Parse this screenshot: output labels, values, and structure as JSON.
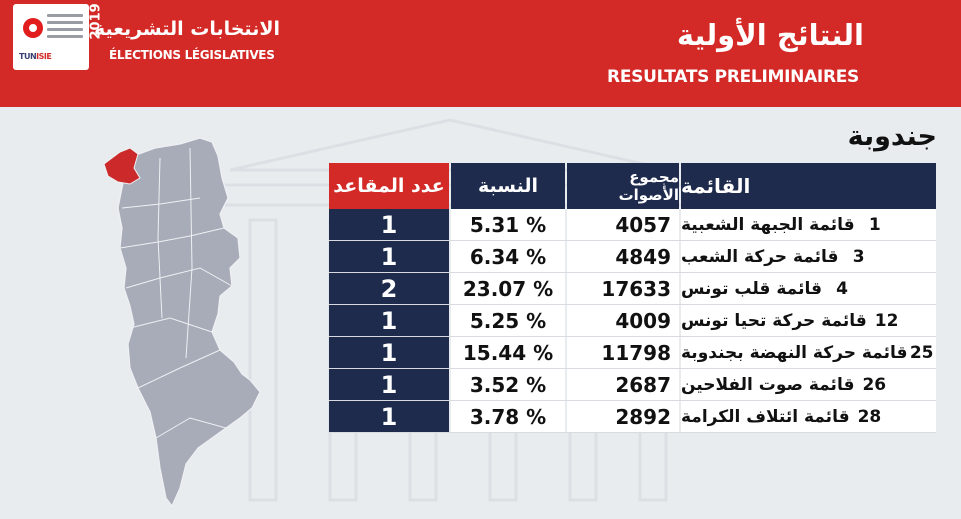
{
  "header": {
    "election_title_ar": "الانتخابات التشريعية",
    "election_title_fr": "ÉLECTIONS LÉGISLATIVES",
    "election_year": "2019",
    "logo_text": "ISIE",
    "logo_text_prefix": "TUN",
    "results_title_ar": "النتائج الأولية",
    "results_title_fr": "RESULTATS PRELIMINAIRES",
    "brand_color": "#d42a27"
  },
  "governorate": "جندوبة",
  "table": {
    "headers": {
      "list": "القائمة",
      "votes": "مجموع الأصوات",
      "percent": "النسبة",
      "seats": "عدد المقاعد"
    },
    "rows": [
      {
        "number": "1",
        "name": "قائمة الجبهة الشعبية",
        "votes": "4057",
        "percent": "5.31 %",
        "seats": "1"
      },
      {
        "number": "3",
        "name": "قائمة حركة الشعب",
        "votes": "4849",
        "percent": "6.34 %",
        "seats": "1"
      },
      {
        "number": "4",
        "name": "قائمة قلب تونس",
        "votes": "17633",
        "percent": "23.07 %",
        "seats": "2"
      },
      {
        "number": "12",
        "name": "قائمة حركة تحيا تونس",
        "votes": "4009",
        "percent": "5.25 %",
        "seats": "1"
      },
      {
        "number": "25",
        "name": "قائمة حركة النهضة بجندوبة",
        "votes": "11798",
        "percent": "15.44 %",
        "seats": "1"
      },
      {
        "number": "26",
        "name": "قائمة صوت الفلاحين",
        "votes": "2687",
        "percent": "3.52 %",
        "seats": "1"
      },
      {
        "number": "28",
        "name": "قائمة ائتلاف الكرامة",
        "votes": "2892",
        "percent": "3.78 %",
        "seats": "1"
      }
    ]
  },
  "map": {
    "highlight_color": "#cc2a2a",
    "base_color": "#a8acb8",
    "highlighted_region": "جندوبة"
  }
}
